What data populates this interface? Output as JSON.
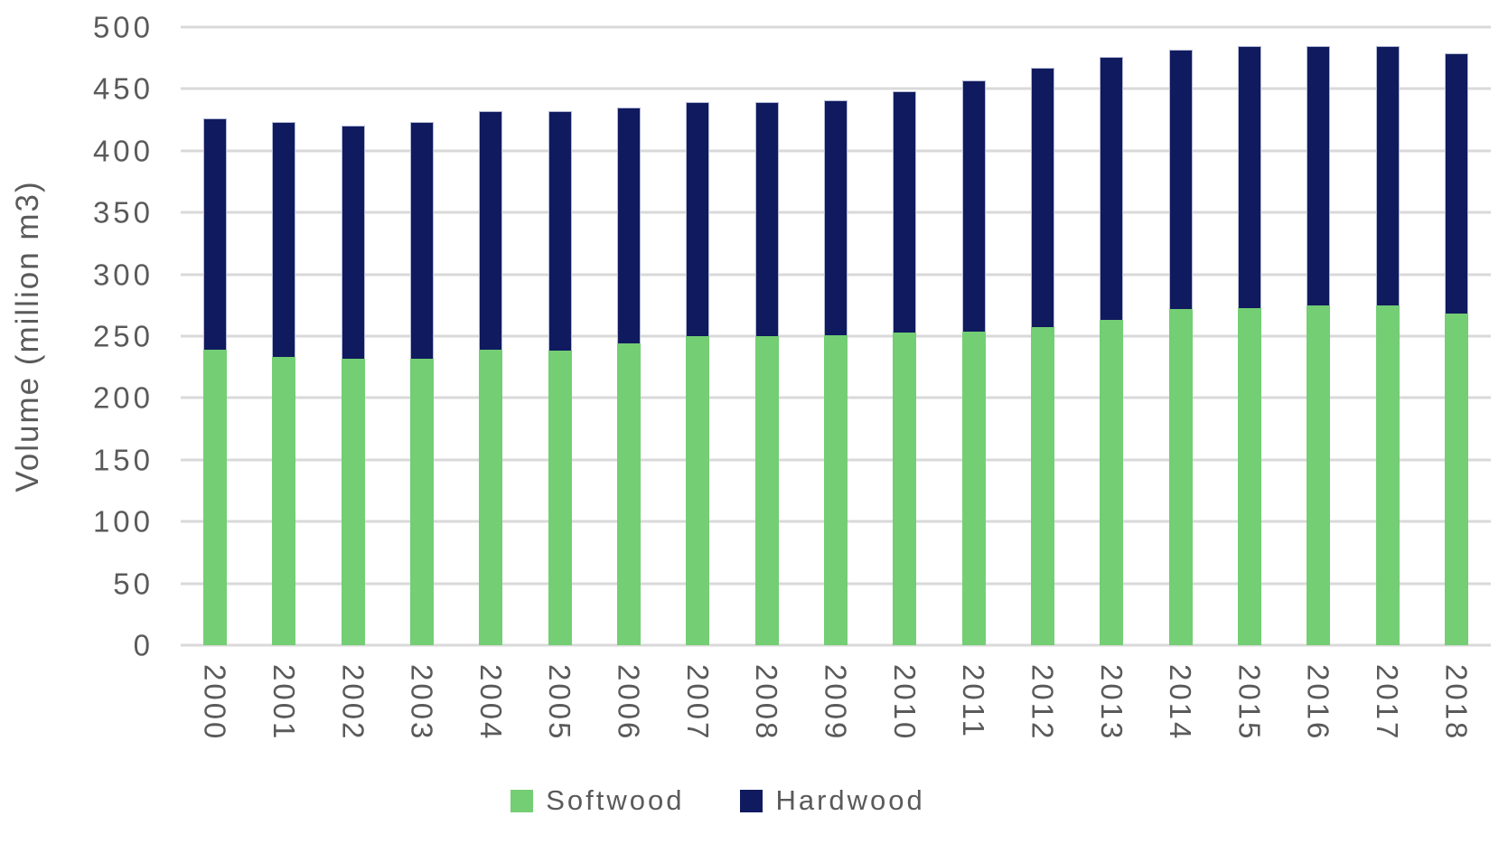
{
  "chart_data": {
    "type": "bar",
    "stacked": true,
    "title": "",
    "xlabel": "",
    "ylabel": "Volume (million m3)",
    "ylim": [
      0,
      500
    ],
    "ytick_step": 50,
    "grid": "horizontal",
    "legend_position": "bottom",
    "categories": [
      "2000",
      "2001",
      "2002",
      "2003",
      "2004",
      "2005",
      "2006",
      "2007",
      "2008",
      "2009",
      "2010",
      "2011",
      "2012",
      "2013",
      "2014",
      "2015",
      "2016",
      "2017",
      "2018"
    ],
    "series": [
      {
        "name": "Softwood",
        "color": "#74CE74",
        "values": [
          239,
          233,
          232,
          232,
          239,
          238,
          244,
          250,
          250,
          251,
          253,
          254,
          257,
          263,
          272,
          273,
          275,
          275,
          268
        ]
      },
      {
        "name": "Hardwood",
        "color": "#101A5E",
        "values": [
          187,
          190,
          188,
          191,
          193,
          194,
          191,
          189,
          189,
          190,
          195,
          203,
          210,
          213,
          210,
          212,
          210,
          210,
          211
        ]
      }
    ],
    "totals": [
      426,
      423,
      420,
      423,
      432,
      432,
      435,
      439,
      439,
      441,
      448,
      457,
      467,
      476,
      482,
      485,
      485,
      485,
      479
    ]
  },
  "colors": {
    "softwood": "#74CE74",
    "hardwood": "#101A5E",
    "gridline": "#D9D9D9",
    "axis_text": "#5A5A5A",
    "bar_border": "#B3B9D4",
    "background": "#FFFFFF"
  }
}
